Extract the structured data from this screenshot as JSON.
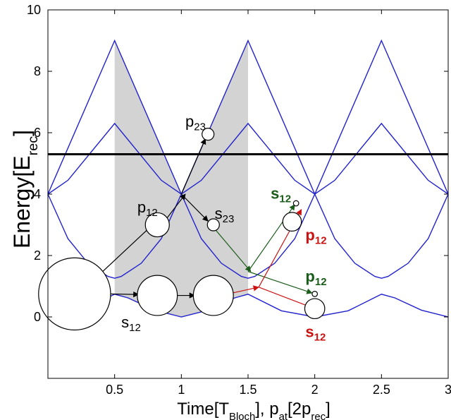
{
  "chart_data": {
    "type": "line",
    "xlabel": {
      "main": "Time[T",
      "sub": "Bloch",
      "rest": "], p",
      "sub2": "at",
      "rest2": "[2p",
      "sub3": "rec",
      "end": "]"
    },
    "ylabel": {
      "main": "Energy[E",
      "sub": "rec",
      "end": "]"
    },
    "xlim": [
      0,
      3
    ],
    "ylim": [
      -2,
      10
    ],
    "xticks": [
      "0.5",
      "1",
      "1.5",
      "2",
      "2.5",
      "3"
    ],
    "xtick_values": [
      0.5,
      1,
      1.5,
      2,
      2.5,
      3
    ],
    "yticks": [
      "0",
      "2",
      "4",
      "6",
      "8",
      "10"
    ],
    "ytick_values": [
      0,
      2,
      4,
      6,
      8,
      10
    ],
    "grid": false,
    "colors": {
      "bands": "#2222cc",
      "axis": "#000000",
      "shade": "#d3d3d3",
      "green": "#1a5c1a",
      "red": "#cc1111"
    },
    "horizontal_line": {
      "y": 5.3
    },
    "shaded_region": {
      "x_from": 0.5,
      "x_to": 1.5
    },
    "bands": [
      {
        "name": "band-1",
        "points": [
          [
            0,
            0
          ],
          [
            0.25,
            0.2
          ],
          [
            0.5,
            0.74
          ],
          [
            0.6,
            0.62
          ],
          [
            0.8,
            0.22
          ],
          [
            1,
            0
          ],
          [
            1.2,
            0.22
          ],
          [
            1.4,
            0.62
          ],
          [
            1.5,
            0.74
          ],
          [
            1.75,
            0.2
          ],
          [
            2,
            0
          ],
          [
            2.25,
            0.2
          ],
          [
            2.5,
            0.74
          ],
          [
            2.6,
            0.62
          ],
          [
            2.8,
            0.22
          ],
          [
            3,
            0
          ]
        ]
      },
      {
        "name": "band-2",
        "points": [
          [
            0,
            4
          ],
          [
            0.15,
            2.55
          ],
          [
            0.3,
            1.75
          ],
          [
            0.45,
            1.32
          ],
          [
            0.5,
            1.26
          ],
          [
            0.55,
            1.32
          ],
          [
            0.7,
            1.75
          ],
          [
            0.85,
            2.55
          ],
          [
            1,
            4
          ],
          [
            1.15,
            2.55
          ],
          [
            1.3,
            1.75
          ],
          [
            1.45,
            1.32
          ],
          [
            1.5,
            1.26
          ],
          [
            1.55,
            1.32
          ],
          [
            1.7,
            1.75
          ],
          [
            1.85,
            2.55
          ],
          [
            2,
            4
          ],
          [
            2.15,
            2.55
          ],
          [
            2.3,
            1.75
          ],
          [
            2.45,
            1.32
          ],
          [
            2.5,
            1.26
          ],
          [
            2.55,
            1.32
          ],
          [
            2.7,
            1.75
          ],
          [
            2.85,
            2.55
          ],
          [
            3,
            4
          ]
        ]
      },
      {
        "name": "band-3-up",
        "points": [
          [
            0,
            4
          ],
          [
            0.5,
            9
          ],
          [
            1,
            4
          ],
          [
            1.5,
            9
          ],
          [
            2,
            4
          ],
          [
            2.5,
            9
          ],
          [
            3,
            4
          ]
        ]
      },
      {
        "name": "band-3-down",
        "points": [
          [
            0,
            4
          ],
          [
            0.15,
            4.45
          ],
          [
            0.5,
            6.3
          ],
          [
            0.85,
            4.45
          ],
          [
            1,
            4
          ],
          [
            1.15,
            4.45
          ],
          [
            1.5,
            6.3
          ],
          [
            1.85,
            4.45
          ],
          [
            2,
            4
          ],
          [
            2.15,
            4.45
          ],
          [
            2.5,
            6.3
          ],
          [
            2.85,
            4.45
          ],
          [
            3,
            4
          ]
        ]
      }
    ],
    "states": [
      {
        "name": "initial-state",
        "x": 0.2,
        "y": 0.75,
        "r": 0.27
      },
      {
        "name": "s12-state-1",
        "x": 0.82,
        "y": 0.7,
        "r": 0.15
      },
      {
        "name": "s12-state-2",
        "x": 1.24,
        "y": 0.7,
        "r": 0.15
      },
      {
        "name": "p12-state",
        "x": 0.82,
        "y": 3.0,
        "r": 0.09
      },
      {
        "name": "p23-state",
        "x": 1.2,
        "y": 5.95,
        "r": 0.045
      },
      {
        "name": "s23-state",
        "x": 1.24,
        "y": 3.0,
        "r": 0.045
      },
      {
        "name": "green-s12-state",
        "x": 1.86,
        "y": 3.7,
        "r": 0.02
      },
      {
        "name": "red-p12-state",
        "x": 1.83,
        "y": 3.1,
        "r": 0.07
      },
      {
        "name": "green-p12-state",
        "x": 2.0,
        "y": 0.75,
        "r": 0.02
      },
      {
        "name": "red-s12-state",
        "x": 2.0,
        "y": 0.27,
        "r": 0.075
      }
    ],
    "arrows": [
      {
        "color": "black",
        "from": [
          0.28,
          0.95
        ],
        "to": [
          0.78,
          2.98
        ]
      },
      {
        "color": "black",
        "from": [
          0.35,
          0.76
        ],
        "to": [
          0.68,
          0.73
        ]
      },
      {
        "color": "black",
        "from": [
          0.9,
          0.7
        ],
        "to": [
          1.1,
          0.7
        ]
      },
      {
        "color": "black",
        "from": [
          0.88,
          3.15
        ],
        "to": [
          1.03,
          4.0
        ]
      },
      {
        "color": "black",
        "from": [
          1.0,
          4.0
        ],
        "to": [
          1.18,
          5.8
        ]
      },
      {
        "color": "black",
        "from": [
          1.0,
          4.0
        ],
        "to": [
          1.2,
          3.12
        ]
      },
      {
        "color": "green",
        "from": [
          1.24,
          2.92
        ],
        "to": [
          1.52,
          1.48
        ]
      },
      {
        "color": "green",
        "from": [
          1.5,
          1.48
        ],
        "to": [
          1.85,
          3.66
        ]
      },
      {
        "color": "green",
        "from": [
          1.5,
          1.48
        ],
        "to": [
          1.98,
          0.78
        ]
      },
      {
        "color": "red",
        "from": [
          1.32,
          0.72
        ],
        "to": [
          1.58,
          0.97
        ]
      },
      {
        "color": "red",
        "from": [
          1.58,
          0.97
        ],
        "to": [
          1.9,
          3.5
        ]
      },
      {
        "color": "red",
        "from": [
          1.58,
          0.97
        ],
        "to": [
          1.97,
          0.32
        ]
      }
    ],
    "annotations": [
      {
        "name": "label-p23",
        "text": "p",
        "sub": "23",
        "x": 1.03,
        "y": 6.2,
        "color": "black",
        "bold": false
      },
      {
        "name": "label-p12",
        "text": "p",
        "sub": "12",
        "x": 0.67,
        "y": 3.4,
        "color": "black",
        "bold": false
      },
      {
        "name": "label-s23",
        "text": "s",
        "sub": "23",
        "x": 1.25,
        "y": 3.2,
        "color": "black",
        "bold": false
      },
      {
        "name": "label-s12-black",
        "text": "s",
        "sub": "12",
        "x": 0.55,
        "y": -0.35,
        "color": "black",
        "bold": false
      },
      {
        "name": "label-s12-green",
        "text": "s",
        "sub": "12",
        "x": 1.67,
        "y": 3.85,
        "color": "green",
        "bold": true
      },
      {
        "name": "label-p12-red",
        "text": "p",
        "sub": "12",
        "x": 1.93,
        "y": 2.5,
        "color": "red",
        "bold": true
      },
      {
        "name": "label-p12-green",
        "text": "p",
        "sub": "12",
        "x": 1.93,
        "y": 1.15,
        "color": "green",
        "bold": true
      },
      {
        "name": "label-s12-red",
        "text": "s",
        "sub": "12",
        "x": 1.93,
        "y": -0.65,
        "color": "red",
        "bold": true
      }
    ]
  }
}
